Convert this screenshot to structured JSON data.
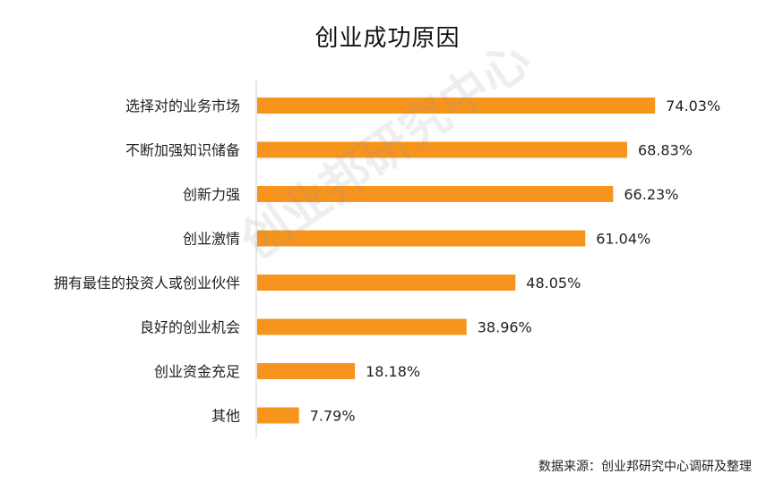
{
  "chart_data": {
    "type": "bar",
    "orientation": "horizontal",
    "title": "创业成功原因",
    "categories": [
      "选择对的业务市场",
      "不断加强知识储备",
      "创新力强",
      "创业激情",
      "拥有最佳的投资人或创业伙伴",
      "良好的创业机会",
      "创业资金充足",
      "其他"
    ],
    "values": [
      74.03,
      68.83,
      66.23,
      61.04,
      48.05,
      38.96,
      18.18,
      7.79
    ],
    "value_labels": [
      "74.03%",
      "68.83%",
      "66.23%",
      "61.04%",
      "48.05%",
      "38.96%",
      "18.18%",
      "7.79%"
    ],
    "xlim": [
      0,
      100
    ],
    "grid": false,
    "bar_color": "#F7941D"
  },
  "source": "数据来源：创业邦研究中心调研及整理",
  "watermark": "创业邦研究中心"
}
